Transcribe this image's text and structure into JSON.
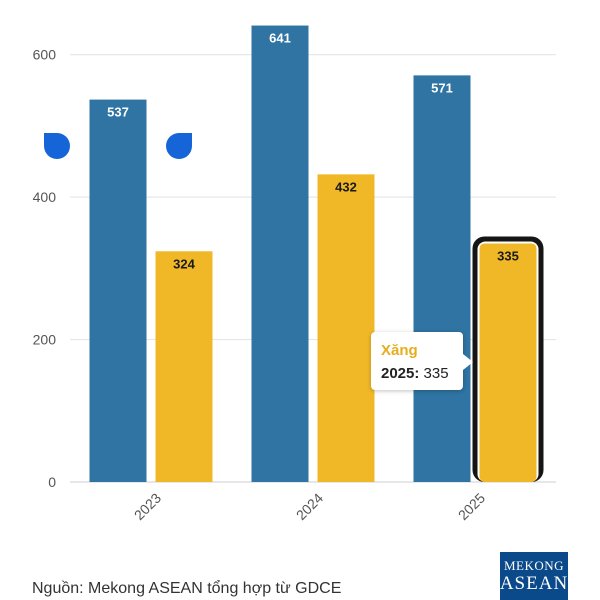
{
  "chart_data": {
    "type": "bar",
    "categories": [
      "2023",
      "2024",
      "2025"
    ],
    "series": [
      {
        "values": [
          537,
          641,
          571
        ],
        "color": "#2f74a3"
      },
      {
        "name": "Xăng",
        "values": [
          324,
          432,
          335
        ],
        "color": "#f0b827"
      }
    ],
    "yticks": [
      0,
      200,
      400,
      600
    ],
    "ylim": [
      0,
      660
    ],
    "grid": true,
    "highlight": {
      "series": 1,
      "category": 2
    }
  },
  "tooltip": {
    "series_name": "Xăng",
    "category": "2025",
    "value": "335"
  },
  "source": "Nguồn: Mekong ASEAN tổng hợp từ GDCE",
  "logo": {
    "line1": "MEKONG",
    "line2": "ASEAN"
  },
  "icons": [
    "drop-icon",
    "drop-icon"
  ]
}
